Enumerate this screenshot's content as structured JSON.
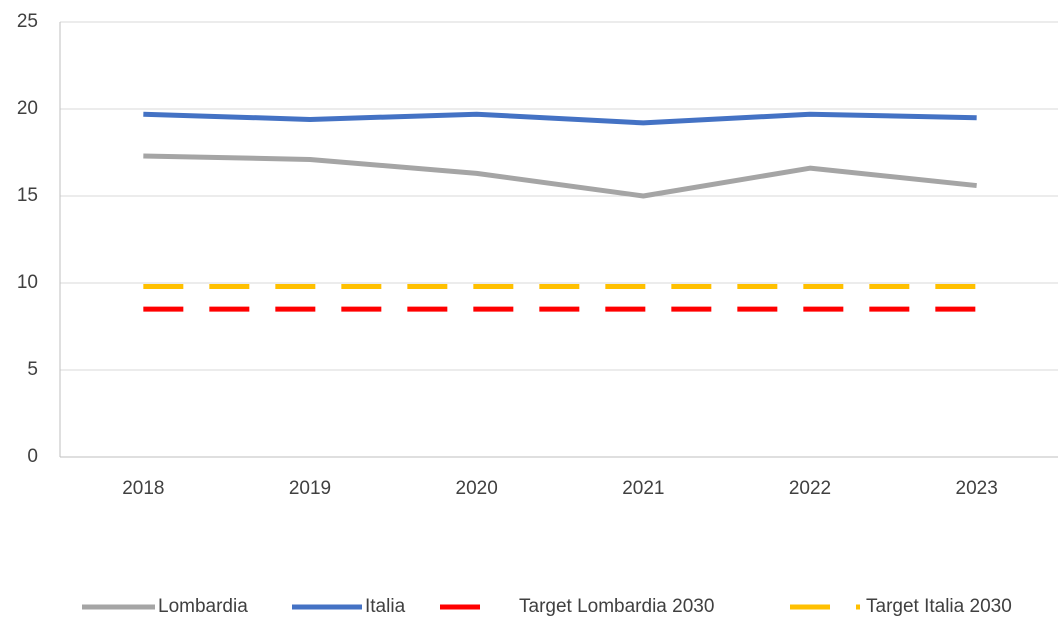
{
  "chart_data": {
    "type": "line",
    "categories": [
      "2018",
      "2019",
      "2020",
      "2021",
      "2022",
      "2023"
    ],
    "series": [
      {
        "name": "Lombardia",
        "color": "#a5a5a5",
        "dashed": false,
        "values": [
          17.3,
          17.1,
          16.3,
          15.0,
          16.6,
          15.6
        ]
      },
      {
        "name": "Italia",
        "color": "#4472c4",
        "dashed": false,
        "values": [
          19.7,
          19.4,
          19.7,
          19.2,
          19.7,
          19.5
        ]
      },
      {
        "name": "Target Lombardia 2030",
        "color": "#ff0000",
        "dashed": true,
        "values": [
          8.5,
          8.5,
          8.5,
          8.5,
          8.5,
          8.5
        ]
      },
      {
        "name": "Target Italia 2030",
        "color": "#ffc000",
        "dashed": true,
        "values": [
          9.8,
          9.8,
          9.8,
          9.8,
          9.8,
          9.8
        ]
      }
    ],
    "ylim": [
      0,
      25
    ],
    "yticks": [
      0,
      5,
      10,
      15,
      20,
      25
    ],
    "grid": true,
    "legend": "bottom"
  }
}
